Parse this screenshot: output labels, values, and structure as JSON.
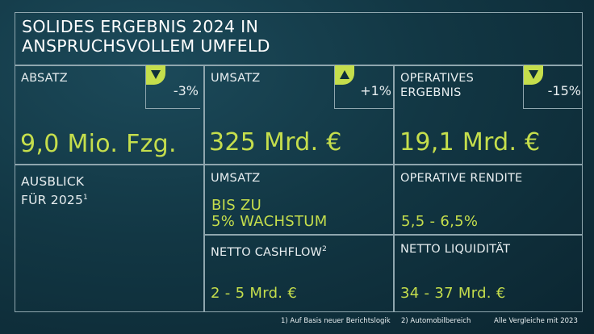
{
  "title": {
    "line1": "SOLIDES ERGEBNIS 2024 IN",
    "line2": "ANSPRUCHSVOLLEM UMFELD"
  },
  "kpis": [
    {
      "label": "ABSATZ",
      "value": "9,0 Mio. Fzg.",
      "change": "-3%",
      "trend": "down"
    },
    {
      "label": "UMSATZ",
      "value": "325 Mrd. €",
      "change": "+1%",
      "trend": "up"
    },
    {
      "label_line1": "OPERATIVES",
      "label_line2": "ERGEBNIS",
      "value": "19,1 Mrd. €",
      "change": "-15%",
      "trend": "down"
    }
  ],
  "outlook": {
    "title_line1": "AUSBLICK",
    "title_line2": "FÜR 2025",
    "footnote_ref": "1",
    "items": [
      {
        "label": "UMSATZ",
        "value_line1": "BIS ZU",
        "value_line2": "5% WACHSTUM"
      },
      {
        "label": "OPERATIVE RENDITE",
        "value": "5,5 - 6,5%"
      },
      {
        "label": "NETTO CASHFLOW",
        "footnote_ref": "2",
        "value": "2 - 5 Mrd. €"
      },
      {
        "label": "NETTO LIQUIDITÄT",
        "value": "34 - 37 Mrd. €"
      }
    ]
  },
  "footnotes": {
    "note1": "1)  Auf Basis neuer Berichtslogik",
    "note2": "2) Automobilbereich",
    "note3": "Alle Vergleiche mit 2023"
  },
  "colors": {
    "accent": "#c5de4c",
    "background": "#123744",
    "lines": "#8fa6ae"
  },
  "icons": {
    "down": "triangle-down-icon",
    "up": "triangle-up-icon"
  }
}
